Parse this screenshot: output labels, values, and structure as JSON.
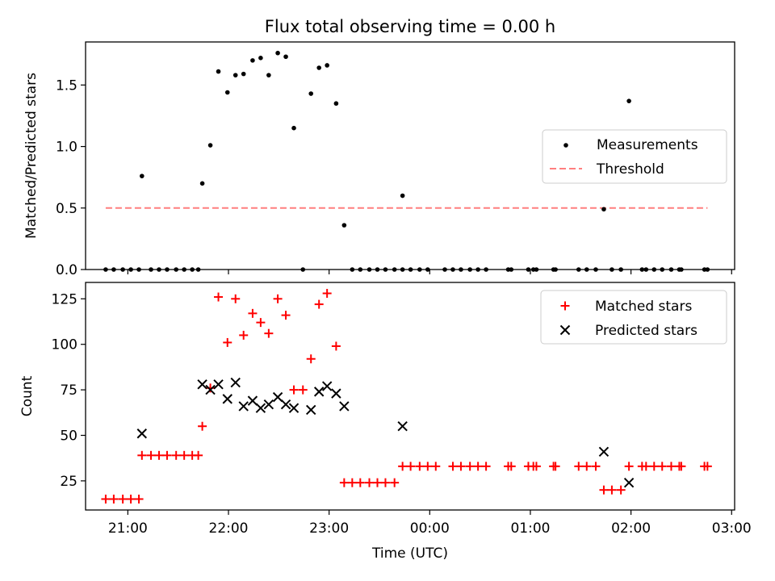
{
  "chart_data": [
    {
      "type": "scatter",
      "title": "Flux total observing time = 0.00 h",
      "xlabel": "",
      "ylabel": "Matched/Predicted stars",
      "ylim": [
        0,
        1.85
      ],
      "yticks": [
        0.0,
        0.5,
        1.0,
        1.5
      ],
      "ytick_labels": [
        "0.0",
        "0.5",
        "1.0",
        "1.5"
      ],
      "xlim_hours": [
        20.58,
        27.03
      ],
      "legend": "center-right",
      "series": [
        {
          "name": "Measurements",
          "marker": "dot",
          "color": "#000000",
          "points": [
            [
              20.78,
              0
            ],
            [
              20.86,
              0
            ],
            [
              20.95,
              0
            ],
            [
              21.03,
              0
            ],
            [
              21.11,
              0
            ],
            [
              21.14,
              0.76
            ],
            [
              21.23,
              0
            ],
            [
              21.31,
              0
            ],
            [
              21.39,
              0
            ],
            [
              21.48,
              0
            ],
            [
              21.56,
              0
            ],
            [
              21.64,
              0
            ],
            [
              21.7,
              0
            ],
            [
              21.74,
              0.7
            ],
            [
              21.82,
              1.01
            ],
            [
              21.9,
              1.61
            ],
            [
              21.99,
              1.44
            ],
            [
              22.07,
              1.58
            ],
            [
              22.15,
              1.59
            ],
            [
              22.24,
              1.7
            ],
            [
              22.32,
              1.72
            ],
            [
              22.4,
              1.58
            ],
            [
              22.49,
              1.76
            ],
            [
              22.57,
              1.73
            ],
            [
              22.65,
              1.15
            ],
            [
              22.74,
              0
            ],
            [
              22.82,
              1.43
            ],
            [
              22.9,
              1.64
            ],
            [
              22.98,
              1.66
            ],
            [
              23.07,
              1.35
            ],
            [
              23.15,
              0.36
            ],
            [
              23.23,
              0
            ],
            [
              23.31,
              0
            ],
            [
              23.4,
              0
            ],
            [
              23.48,
              0
            ],
            [
              23.56,
              0
            ],
            [
              23.65,
              0
            ],
            [
              23.73,
              0
            ],
            [
              23.73,
              0.6
            ],
            [
              23.81,
              0
            ],
            [
              23.9,
              0
            ],
            [
              23.98,
              0
            ],
            [
              24.15,
              0
            ],
            [
              24.23,
              0
            ],
            [
              24.31,
              0
            ],
            [
              24.4,
              0
            ],
            [
              24.48,
              0
            ],
            [
              24.56,
              0
            ],
            [
              24.78,
              0
            ],
            [
              24.81,
              0
            ],
            [
              24.98,
              0
            ],
            [
              25.03,
              0
            ],
            [
              25.06,
              0
            ],
            [
              25.23,
              0
            ],
            [
              25.25,
              0
            ],
            [
              25.48,
              0
            ],
            [
              25.56,
              0
            ],
            [
              25.65,
              0
            ],
            [
              25.73,
              0.49
            ],
            [
              25.81,
              0
            ],
            [
              25.9,
              0
            ],
            [
              25.98,
              1.37
            ],
            [
              26.11,
              0
            ],
            [
              26.15,
              0
            ],
            [
              26.23,
              0
            ],
            [
              26.31,
              0
            ],
            [
              26.4,
              0
            ],
            [
              26.48,
              0
            ],
            [
              26.5,
              0
            ],
            [
              26.73,
              0
            ],
            [
              26.76,
              0
            ]
          ]
        },
        {
          "name": "Threshold",
          "type": "line",
          "style": "dashed",
          "color": "#ff7f7f",
          "points": [
            [
              20.78,
              0.5
            ],
            [
              26.76,
              0.5
            ]
          ]
        }
      ]
    },
    {
      "type": "scatter",
      "title": "",
      "xlabel": "Time (UTC)",
      "ylabel": "Count",
      "ylim": [
        9,
        134
      ],
      "yticks": [
        25,
        50,
        75,
        100,
        125
      ],
      "ytick_labels": [
        "25",
        "50",
        "75",
        "100",
        "125"
      ],
      "xticks_hours": [
        21,
        22,
        23,
        24,
        25,
        26,
        27
      ],
      "xtick_labels": [
        "21:00",
        "22:00",
        "23:00",
        "00:00",
        "01:00",
        "02:00",
        "03:00"
      ],
      "xlim_hours": [
        20.58,
        27.03
      ],
      "legend": "top-right",
      "series": [
        {
          "name": "Matched stars",
          "marker": "plus",
          "color": "#ff0000",
          "points": [
            [
              20.78,
              15
            ],
            [
              20.86,
              15
            ],
            [
              20.95,
              15
            ],
            [
              21.03,
              15
            ],
            [
              21.11,
              15
            ],
            [
              21.14,
              39
            ],
            [
              21.23,
              39
            ],
            [
              21.31,
              39
            ],
            [
              21.39,
              39
            ],
            [
              21.48,
              39
            ],
            [
              21.56,
              39
            ],
            [
              21.64,
              39
            ],
            [
              21.7,
              39
            ],
            [
              21.74,
              55
            ],
            [
              21.82,
              76
            ],
            [
              21.9,
              126
            ],
            [
              21.99,
              101
            ],
            [
              22.07,
              125
            ],
            [
              22.15,
              105
            ],
            [
              22.24,
              117
            ],
            [
              22.32,
              112
            ],
            [
              22.4,
              106
            ],
            [
              22.49,
              125
            ],
            [
              22.57,
              116
            ],
            [
              22.65,
              75
            ],
            [
              22.74,
              75
            ],
            [
              22.82,
              92
            ],
            [
              22.9,
              122
            ],
            [
              22.98,
              128
            ],
            [
              23.07,
              99
            ],
            [
              23.15,
              24
            ],
            [
              23.23,
              24
            ],
            [
              23.31,
              24
            ],
            [
              23.4,
              24
            ],
            [
              23.48,
              24
            ],
            [
              23.56,
              24
            ],
            [
              23.65,
              24
            ],
            [
              23.73,
              33
            ],
            [
              23.81,
              33
            ],
            [
              23.9,
              33
            ],
            [
              23.98,
              33
            ],
            [
              24.06,
              33
            ],
            [
              24.23,
              33
            ],
            [
              24.31,
              33
            ],
            [
              24.4,
              33
            ],
            [
              24.48,
              33
            ],
            [
              24.56,
              33
            ],
            [
              24.78,
              33
            ],
            [
              24.81,
              33
            ],
            [
              24.98,
              33
            ],
            [
              25.03,
              33
            ],
            [
              25.06,
              33
            ],
            [
              25.23,
              33
            ],
            [
              25.25,
              33
            ],
            [
              25.48,
              33
            ],
            [
              25.56,
              33
            ],
            [
              25.65,
              33
            ],
            [
              25.73,
              20
            ],
            [
              25.81,
              20
            ],
            [
              25.9,
              20
            ],
            [
              25.98,
              33
            ],
            [
              26.11,
              33
            ],
            [
              26.15,
              33
            ],
            [
              26.23,
              33
            ],
            [
              26.31,
              33
            ],
            [
              26.4,
              33
            ],
            [
              26.48,
              33
            ],
            [
              26.5,
              33
            ],
            [
              26.73,
              33
            ],
            [
              26.76,
              33
            ]
          ]
        },
        {
          "name": "Predicted stars",
          "marker": "x",
          "color": "#000000",
          "points": [
            [
              21.14,
              51
            ],
            [
              21.74,
              78
            ],
            [
              21.82,
              75
            ],
            [
              21.9,
              78
            ],
            [
              21.99,
              70
            ],
            [
              22.07,
              79
            ],
            [
              22.15,
              66
            ],
            [
              22.24,
              69
            ],
            [
              22.32,
              65
            ],
            [
              22.4,
              67
            ],
            [
              22.49,
              71
            ],
            [
              22.57,
              67
            ],
            [
              22.65,
              65
            ],
            [
              22.82,
              64
            ],
            [
              22.9,
              74
            ],
            [
              22.98,
              77
            ],
            [
              23.07,
              73
            ],
            [
              23.15,
              66
            ],
            [
              23.73,
              55
            ],
            [
              25.73,
              41
            ],
            [
              25.98,
              24
            ]
          ]
        }
      ]
    }
  ]
}
